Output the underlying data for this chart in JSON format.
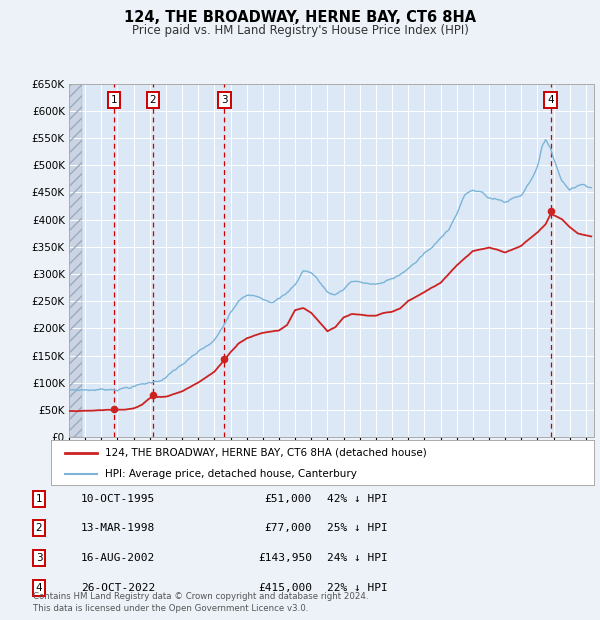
{
  "title": "124, THE BROADWAY, HERNE BAY, CT6 8HA",
  "subtitle": "Price paid vs. HM Land Registry's House Price Index (HPI)",
  "transactions": [
    {
      "label": "1",
      "date_dec": 1995.78,
      "price": 51000
    },
    {
      "label": "2",
      "date_dec": 1998.2,
      "price": 77000
    },
    {
      "label": "3",
      "date_dec": 2002.62,
      "price": 143950
    },
    {
      "label": "4",
      "date_dec": 2022.82,
      "price": 415000
    }
  ],
  "table_rows": [
    {
      "num": "1",
      "date": "10-OCT-1995",
      "price": "£51,000",
      "hpi": "42% ↓ HPI"
    },
    {
      "num": "2",
      "date": "13-MAR-1998",
      "price": "£77,000",
      "hpi": "25% ↓ HPI"
    },
    {
      "num": "3",
      "date": "16-AUG-2002",
      "price": "£143,950",
      "hpi": "24% ↓ HPI"
    },
    {
      "num": "4",
      "date": "26-OCT-2022",
      "price": "£415,000",
      "hpi": "22% ↓ HPI"
    }
  ],
  "legend_line1": "124, THE BROADWAY, HERNE BAY, CT6 8HA (detached house)",
  "legend_line2": "HPI: Average price, detached house, Canterbury",
  "footer": "Contains HM Land Registry data © Crown copyright and database right 2024.\nThis data is licensed under the Open Government Licence v3.0.",
  "hpi_color": "#7ab4d8",
  "price_color": "#cc2222",
  "transaction_vline_color": "#cc0000",
  "box_edge_color": "#cc0000",
  "ylim": [
    0,
    650000
  ],
  "yticks": [
    0,
    50000,
    100000,
    150000,
    200000,
    250000,
    300000,
    350000,
    400000,
    450000,
    500000,
    550000,
    600000,
    650000
  ],
  "xmin": 1993.0,
  "xmax": 2025.5,
  "bg_color": "#edf2f8",
  "plot_bg": "#dce8f5",
  "hatch_color": "#c0c8d8",
  "hpi_anchors": {
    "1993.0": 87000,
    "1994.0": 88000,
    "1995.0": 89000,
    "1996.0": 92000,
    "1997.0": 98000,
    "1998.0": 104000,
    "1998.5": 108000,
    "1999.0": 116000,
    "2000.0": 138000,
    "2001.0": 158000,
    "2002.0": 178000,
    "2002.5": 200000,
    "2003.0": 228000,
    "2003.5": 248000,
    "2004.0": 258000,
    "2004.5": 262000,
    "2005.0": 258000,
    "2005.5": 255000,
    "2006.0": 262000,
    "2006.5": 270000,
    "2007.0": 285000,
    "2007.5": 312000,
    "2008.0": 308000,
    "2008.5": 292000,
    "2009.0": 272000,
    "2009.5": 268000,
    "2010.0": 280000,
    "2010.5": 295000,
    "2011.0": 295000,
    "2011.5": 290000,
    "2012.0": 290000,
    "2012.5": 292000,
    "2013.0": 298000,
    "2013.5": 305000,
    "2014.0": 318000,
    "2014.5": 330000,
    "2015.0": 345000,
    "2015.5": 355000,
    "2016.0": 370000,
    "2016.5": 390000,
    "2017.0": 420000,
    "2017.5": 455000,
    "2018.0": 460000,
    "2018.5": 458000,
    "2019.0": 448000,
    "2019.5": 445000,
    "2020.0": 440000,
    "2020.5": 448000,
    "2021.0": 455000,
    "2021.5": 480000,
    "2022.0": 510000,
    "2022.3": 545000,
    "2022.5": 558000,
    "2022.8": 545000,
    "2023.0": 525000,
    "2023.3": 500000,
    "2023.5": 485000,
    "2024.0": 470000,
    "2024.5": 478000,
    "2025.0": 480000,
    "2025.3": 478000
  },
  "price_anchors": {
    "1993.0": 48000,
    "1994.0": 48000,
    "1995.0": 49000,
    "1995.78": 51000,
    "1996.0": 51500,
    "1996.5": 52000,
    "1997.0": 54000,
    "1997.5": 60000,
    "1998.2": 77000,
    "1998.5": 75000,
    "1999.0": 76000,
    "2000.0": 86000,
    "2001.0": 102000,
    "2002.0": 122000,
    "2002.62": 143950,
    "2003.0": 158000,
    "2003.5": 175000,
    "2004.0": 185000,
    "2005.0": 195000,
    "2006.0": 200000,
    "2006.5": 210000,
    "2007.0": 238000,
    "2007.5": 242000,
    "2008.0": 232000,
    "2008.5": 215000,
    "2009.0": 198000,
    "2009.5": 205000,
    "2010.0": 222000,
    "2010.5": 228000,
    "2011.0": 228000,
    "2011.5": 225000,
    "2012.0": 225000,
    "2012.5": 230000,
    "2013.0": 232000,
    "2013.5": 238000,
    "2014.0": 252000,
    "2015.0": 268000,
    "2016.0": 285000,
    "2017.0": 318000,
    "2018.0": 345000,
    "2019.0": 352000,
    "2019.5": 348000,
    "2020.0": 342000,
    "2020.5": 348000,
    "2021.0": 355000,
    "2021.5": 368000,
    "2022.0": 380000,
    "2022.5": 395000,
    "2022.82": 415000,
    "2023.0": 412000,
    "2023.5": 405000,
    "2024.0": 390000,
    "2024.5": 378000,
    "2025.0": 375000,
    "2025.3": 373000
  }
}
